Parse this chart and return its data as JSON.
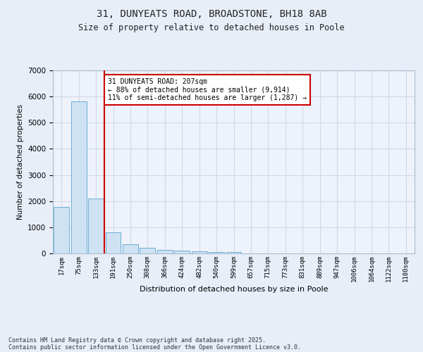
{
  "title": "31, DUNYEATS ROAD, BROADSTONE, BH18 8AB",
  "subtitle": "Size of property relative to detached houses in Poole",
  "xlabel": "Distribution of detached houses by size in Poole",
  "ylabel": "Number of detached properties",
  "categories": [
    "17sqm",
    "75sqm",
    "133sqm",
    "191sqm",
    "250sqm",
    "308sqm",
    "366sqm",
    "424sqm",
    "482sqm",
    "540sqm",
    "599sqm",
    "657sqm",
    "715sqm",
    "773sqm",
    "831sqm",
    "889sqm",
    "947sqm",
    "1006sqm",
    "1064sqm",
    "1122sqm",
    "1180sqm"
  ],
  "values": [
    1780,
    5820,
    2090,
    810,
    360,
    205,
    125,
    95,
    75,
    55,
    55,
    0,
    0,
    0,
    0,
    0,
    0,
    0,
    0,
    0,
    0
  ],
  "bar_color": "#cfe2f3",
  "bar_edge_color": "#6baed6",
  "vline_x_index": 3,
  "annotation_text": "31 DUNYEATS ROAD: 207sqm\n← 88% of detached houses are smaller (9,914)\n11% of semi-detached houses are larger (1,287) →",
  "annotation_box_color": "#ffffff",
  "annotation_box_edge_color": "#cc0000",
  "vline_color": "#cc0000",
  "grid_color": "#d0d8e8",
  "background_color": "#e8eef8",
  "plot_background": "#eef2fa",
  "ylim": [
    0,
    7000
  ],
  "yticks": [
    0,
    1000,
    2000,
    3000,
    4000,
    5000,
    6000,
    7000
  ],
  "footer_line1": "Contains HM Land Registry data © Crown copyright and database right 2025.",
  "footer_line2": "Contains public sector information licensed under the Open Government Licence v3.0."
}
